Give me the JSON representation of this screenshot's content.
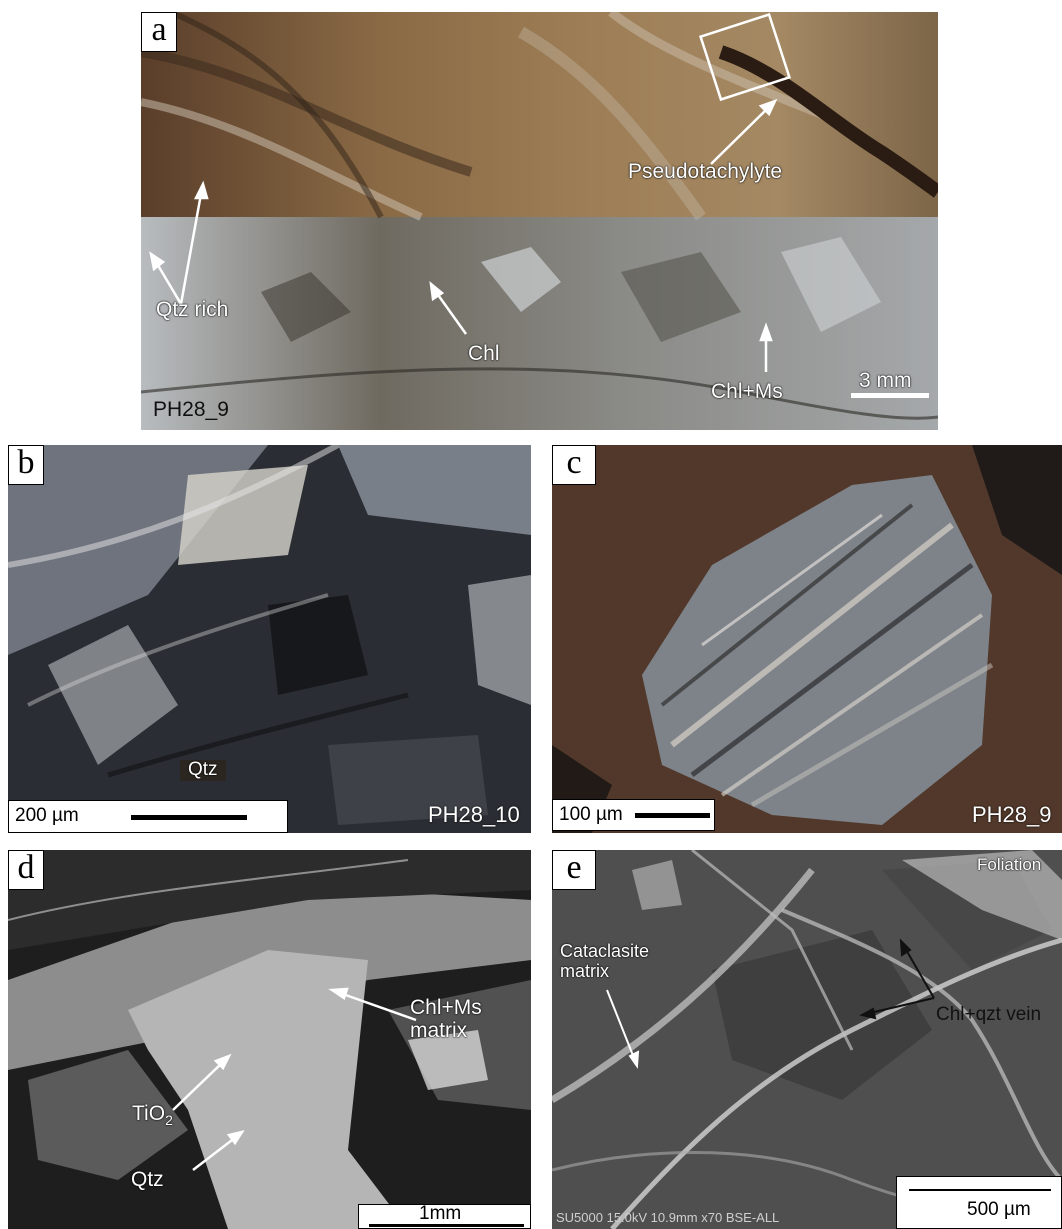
{
  "panels": {
    "a": {
      "letter": "a",
      "sample": "PH28_9",
      "scale": "3 mm",
      "labels": {
        "pseudotachylyte": "Pseudotachylyte",
        "qtz_rich": "Qtz rich",
        "chl": "Chl",
        "chl_ms": "Chl+Ms"
      }
    },
    "b": {
      "letter": "b",
      "sample": "PH28_10",
      "scale": "200 µm",
      "labels": {
        "qtz": "Qtz"
      }
    },
    "c": {
      "letter": "c",
      "sample": "PH28_9",
      "scale": "100 µm"
    },
    "d": {
      "letter": "d",
      "scale": "1mm",
      "labels": {
        "tio2_base": "TiO",
        "tio2_sub": "2",
        "qtz": "Qtz",
        "chl_ms_line1": "Chl+Ms",
        "chl_ms_line2": "matrix"
      }
    },
    "e": {
      "letter": "e",
      "scale": "500 µm",
      "sem_info": "SU5000 15.0kV 10.9mm x70 BSE-ALL",
      "labels": {
        "foliation": "Foliation",
        "cataclasite_line1": "Cataclasite",
        "cataclasite_line2": "matrix",
        "chl_qzt_vein": "Chl+qzt vein"
      }
    }
  },
  "colors": {
    "white": "#ffffff",
    "black": "#000000"
  }
}
